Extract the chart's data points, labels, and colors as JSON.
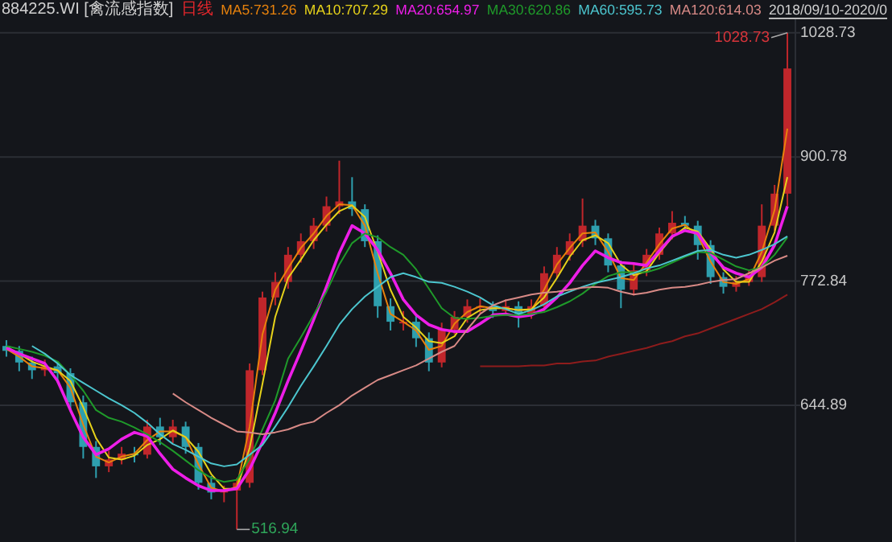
{
  "chart_data": {
    "type": "candlestick",
    "title": "884225.WI [禽流感指数]",
    "subtitle": "日线",
    "legend": "top",
    "grid": "y",
    "categories": [
      null,
      null,
      null,
      null,
      null,
      null,
      null,
      null,
      null,
      null,
      null,
      null,
      null,
      null,
      null,
      null,
      null,
      null,
      null,
      null,
      null,
      null,
      null,
      null,
      null,
      null,
      null,
      null,
      null,
      null,
      null,
      null,
      null,
      null,
      null,
      null,
      null,
      null,
      null,
      null,
      null,
      null,
      null,
      null,
      null,
      null,
      null,
      null,
      null,
      null,
      null,
      null,
      null,
      null,
      null,
      null,
      null,
      null,
      null,
      null,
      null,
      null
    ],
    "ylim": [
      504,
      1046
    ],
    "yticks": [
      1028.73,
      900.78,
      772.84,
      644.89
    ],
    "ohlc": [
      [
        706,
        712,
        695,
        701
      ],
      [
        701,
        706,
        680,
        689
      ],
      [
        689,
        695,
        672,
        681
      ],
      [
        681,
        692,
        675,
        685
      ],
      [
        685,
        690,
        668,
        678
      ],
      [
        678,
        683,
        640,
        648
      ],
      [
        648,
        655,
        590,
        602
      ],
      [
        602,
        608,
        570,
        582
      ],
      [
        582,
        598,
        576,
        589
      ],
      [
        589,
        602,
        584,
        595
      ],
      [
        595,
        602,
        586,
        594
      ],
      [
        594,
        630,
        590,
        623
      ],
      [
        623,
        632,
        604,
        612
      ],
      [
        612,
        630,
        606,
        623
      ],
      [
        623,
        628,
        595,
        602
      ],
      [
        602,
        606,
        558,
        565
      ],
      [
        565,
        572,
        548,
        555
      ],
      [
        555,
        562,
        545,
        557
      ],
      [
        557,
        570,
        516.94,
        565
      ],
      [
        565,
        688,
        560,
        681
      ],
      [
        681,
        762,
        676,
        756
      ],
      [
        756,
        782,
        748,
        772
      ],
      [
        772,
        808,
        765,
        800
      ],
      [
        800,
        822,
        792,
        814
      ],
      [
        814,
        838,
        806,
        830
      ],
      [
        830,
        860,
        824,
        850
      ],
      [
        850,
        897,
        842,
        855
      ],
      [
        855,
        880,
        840,
        847
      ],
      [
        847,
        852,
        808,
        814
      ],
      [
        814,
        820,
        735,
        747
      ],
      [
        747,
        755,
        722,
        731
      ],
      [
        731,
        742,
        722,
        731
      ],
      [
        731,
        738,
        705,
        714
      ],
      [
        714,
        720,
        680,
        689
      ],
      [
        689,
        730,
        684,
        723
      ],
      [
        723,
        742,
        718,
        736
      ],
      [
        736,
        754,
        730,
        747
      ],
      [
        747,
        755,
        740,
        747
      ],
      [
        747,
        752,
        735,
        742
      ],
      [
        742,
        754,
        738,
        747
      ],
      [
        747,
        752,
        725,
        739
      ],
      [
        739,
        754,
        734,
        747
      ],
      [
        747,
        788,
        742,
        781
      ],
      [
        781,
        808,
        776,
        800
      ],
      [
        800,
        822,
        794,
        814
      ],
      [
        814,
        858,
        808,
        830
      ],
      [
        830,
        836,
        810,
        817
      ],
      [
        817,
        822,
        782,
        789
      ],
      [
        789,
        794,
        745,
        764
      ],
      [
        764,
        790,
        758,
        784
      ],
      [
        784,
        806,
        778,
        800
      ],
      [
        800,
        828,
        795,
        822
      ],
      [
        822,
        845,
        816,
        833
      ],
      [
        833,
        840,
        824,
        830
      ],
      [
        830,
        835,
        795,
        810
      ],
      [
        810,
        815,
        770,
        777
      ],
      [
        777,
        782,
        760,
        767
      ],
      [
        767,
        778,
        762,
        772
      ],
      [
        772,
        784,
        768,
        777
      ],
      [
        777,
        852,
        772,
        830
      ],
      [
        830,
        872,
        825,
        863
      ],
      [
        863,
        1028.73,
        850,
        992
      ]
    ],
    "series": [
      {
        "name": "MA5:731.26",
        "type": "line",
        "color": "#e8820c",
        "values": [
          703,
          695,
          685,
          683,
          681,
          663,
          625,
          592,
          586,
          592,
          595,
          609,
          618,
          618,
          612,
          584,
          560,
          556,
          561,
          623,
          718,
          764,
          786,
          807,
          822,
          840,
          852,
          851,
          830,
          781,
          739,
          731,
          722,
          702,
          706,
          729,
          741,
          747,
          745,
          745,
          743,
          743,
          764,
          790,
          807,
          822,
          823,
          803,
          776,
          774,
          792,
          811,
          827,
          831,
          820,
          793,
          772,
          770,
          775,
          803,
          846,
          930
        ]
      },
      {
        "name": "MA10:707.29",
        "type": "line",
        "color": "#e6d21a",
        "values": [
          705,
          698,
          690,
          685,
          681,
          670,
          643,
          611,
          591,
          589,
          593,
          604,
          610,
          619,
          612,
          597,
          574,
          559,
          559,
          601,
          667,
          736,
          776,
          795,
          815,
          831,
          845,
          851,
          839,
          803,
          764,
          736,
          725,
          711,
          709,
          716,
          735,
          743,
          745,
          745,
          743,
          744,
          756,
          776,
          798,
          815,
          820,
          812,
          790,
          779,
          783,
          802,
          818,
          828,
          824,
          806,
          785,
          772,
          772,
          793,
          823,
          880
        ]
      },
      {
        "name": "MA20:654.97",
        "type": "line",
        "color": "#ee1ee8",
        "values": [
          704,
          698,
          693,
          688,
          670,
          640,
          612,
          594,
          600,
          610,
          617,
          613,
          595,
          579,
          570,
          562,
          557,
          557,
          559,
          579,
          607,
          637,
          670,
          701,
          733,
          767,
          802,
          830,
          822,
          805,
          781,
          754,
          738,
          728,
          723,
          721,
          721,
          729,
          738,
          739,
          736,
          738,
          744,
          756,
          771,
          789,
          804,
          797,
          792,
          791,
          789,
          804,
          819,
          825,
          822,
          802,
          787,
          781,
          777,
          787,
          810,
          850
        ]
      },
      {
        "name": "MA30:620.86",
        "type": "line",
        "color": "#1f9a2a",
        "values": [
          706,
          703,
          700,
          696,
          690,
          676,
          660,
          640,
          632,
          628,
          622,
          615,
          607,
          598,
          588,
          578,
          570,
          566,
          568,
          590,
          620,
          650,
          693,
          715,
          738,
          762,
          790,
          812,
          822,
          818,
          808,
          800,
          785,
          765,
          745,
          735,
          734,
          735,
          737,
          738,
          738,
          739,
          741,
          746,
          752,
          760,
          770,
          778,
          782,
          782,
          782,
          786,
          792,
          798,
          803,
          802,
          795,
          788,
          784,
          787,
          800,
          818
        ]
      },
      {
        "name": "MA60:595.73",
        "type": "line",
        "color": "#4cc6cf",
        "values": [
          null,
          null,
          706,
          698,
          688,
          676,
          668,
          660,
          652,
          645,
          637,
          627,
          615,
          605,
          599,
          592,
          585,
          582,
          584,
          594,
          604,
          623,
          643,
          665,
          685,
          706,
          728,
          744,
          757,
          767,
          777,
          781,
          777,
          772,
          771,
          767,
          762,
          756,
          748,
          744,
          739,
          743,
          749,
          757,
          762,
          767,
          771,
          774,
          777,
          781,
          786,
          789,
          794,
          799,
          804,
          805,
          800,
          797,
          800,
          805,
          811,
          819
        ]
      },
      {
        "name": "MA120:614.03",
        "type": "line",
        "color": "#d88a86",
        "values": [
          null,
          null,
          null,
          null,
          null,
          null,
          null,
          null,
          null,
          null,
          null,
          null,
          null,
          657,
          648,
          640,
          632,
          625,
          618,
          617,
          615,
          617,
          620,
          625,
          628,
          637,
          645,
          655,
          663,
          671,
          676,
          681,
          686,
          693,
          700,
          706,
          723,
          739,
          748,
          753,
          756,
          759,
          761,
          762,
          764,
          766,
          767,
          766,
          762,
          759,
          761,
          764,
          766,
          767,
          769,
          772,
          774,
          775,
          781,
          787,
          794,
          799
        ]
      },
      {
        "type": "line",
        "color": "#8e1c1c",
        "values": [
          null,
          null,
          null,
          null,
          null,
          null,
          null,
          null,
          null,
          null,
          null,
          null,
          null,
          null,
          null,
          null,
          null,
          null,
          null,
          null,
          null,
          null,
          null,
          null,
          null,
          null,
          null,
          null,
          null,
          null,
          null,
          null,
          null,
          null,
          null,
          null,
          null,
          685,
          685,
          685,
          685,
          686,
          686,
          688,
          688,
          690,
          691,
          695,
          698,
          701,
          704,
          708,
          711,
          716,
          719,
          724,
          729,
          734,
          739,
          744,
          751,
          759
        ]
      }
    ],
    "annotations": [
      "2018/09/10-2020/0",
      "1028.73",
      "516.94"
    ]
  }
}
